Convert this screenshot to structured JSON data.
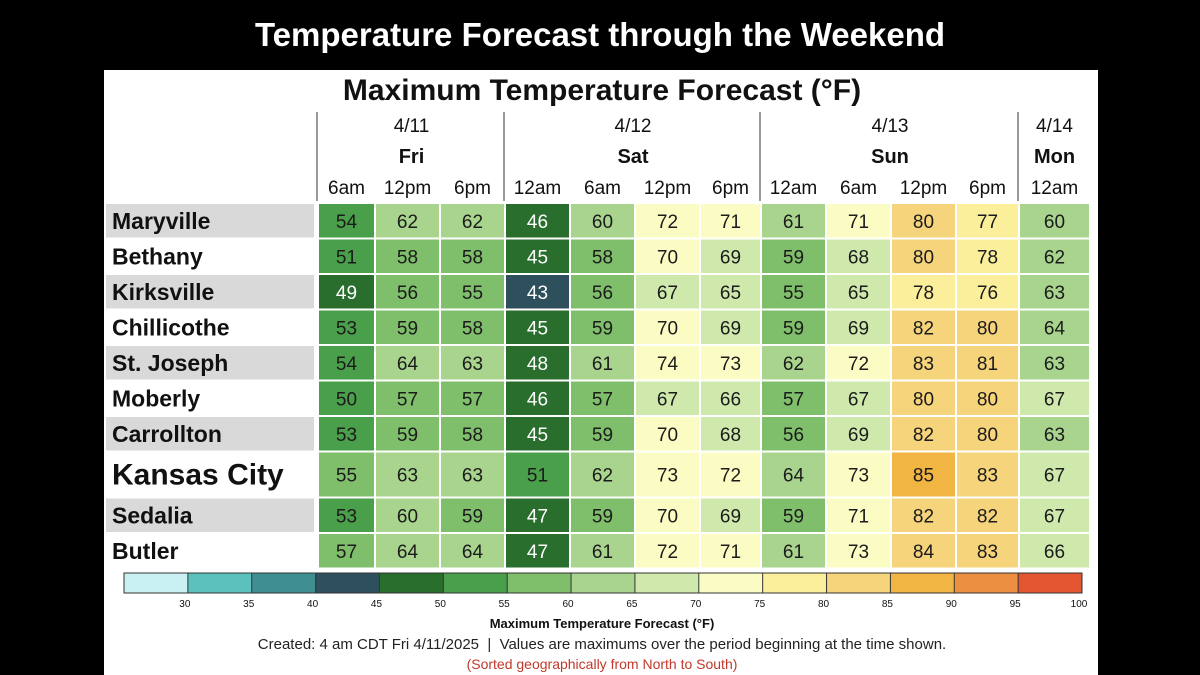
{
  "banner": {
    "title": "Temperature Forecast through the Weekend"
  },
  "chart_data": {
    "type": "heatmap",
    "title": "Maximum Temperature Forecast (°F)",
    "days": [
      {
        "date": "4/11",
        "day": "Fri",
        "times": [
          "6am",
          "12pm",
          "6pm"
        ]
      },
      {
        "date": "4/12",
        "day": "Sat",
        "times": [
          "12am",
          "6am",
          "12pm",
          "6pm"
        ]
      },
      {
        "date": "4/13",
        "day": "Sun",
        "times": [
          "12am",
          "6am",
          "12pm",
          "6pm"
        ]
      },
      {
        "date": "4/14",
        "day": "Mon",
        "times": [
          "12am"
        ]
      }
    ],
    "rows": [
      {
        "city": "Maryville",
        "values": [
          54,
          62,
          62,
          46,
          60,
          72,
          71,
          61,
          71,
          80,
          77,
          60
        ]
      },
      {
        "city": "Bethany",
        "values": [
          51,
          58,
          58,
          45,
          58,
          70,
          69,
          59,
          68,
          80,
          78,
          62
        ]
      },
      {
        "city": "Kirksville",
        "values": [
          49,
          56,
          55,
          43,
          56,
          67,
          65,
          55,
          65,
          78,
          76,
          63
        ]
      },
      {
        "city": "Chillicothe",
        "values": [
          53,
          59,
          58,
          45,
          59,
          70,
          69,
          59,
          69,
          82,
          80,
          64
        ]
      },
      {
        "city": "St. Joseph",
        "values": [
          54,
          64,
          63,
          48,
          61,
          74,
          73,
          62,
          72,
          83,
          81,
          63
        ]
      },
      {
        "city": "Moberly",
        "values": [
          50,
          57,
          57,
          46,
          57,
          67,
          66,
          57,
          67,
          80,
          80,
          67
        ]
      },
      {
        "city": "Carrollton",
        "values": [
          53,
          59,
          58,
          45,
          59,
          70,
          68,
          56,
          69,
          82,
          80,
          63
        ]
      },
      {
        "city": "Kansas City",
        "values": [
          55,
          63,
          63,
          51,
          62,
          73,
          72,
          64,
          73,
          85,
          83,
          67
        ]
      },
      {
        "city": "Sedalia",
        "values": [
          53,
          60,
          59,
          47,
          59,
          70,
          69,
          59,
          71,
          82,
          82,
          67
        ]
      },
      {
        "city": "Butler",
        "values": [
          57,
          64,
          64,
          47,
          61,
          72,
          71,
          61,
          73,
          84,
          83,
          66
        ]
      }
    ],
    "highlight_city": "Kansas City",
    "legend": {
      "label": "Maximum Temperature Forecast (°F)",
      "ticks": [
        30,
        35,
        40,
        45,
        50,
        55,
        60,
        65,
        70,
        75,
        80,
        85,
        90,
        95,
        100
      ],
      "colors": [
        "#c9f0f2",
        "#5cc0bc",
        "#3e8e92",
        "#2e4f5c",
        "#2a6e2e",
        "#4a9f4a",
        "#7fbe6a",
        "#a8d48e",
        "#cfe9ad",
        "#fbfcc4",
        "#fbef9c",
        "#f6d47b",
        "#f0b542",
        "#ec8f40",
        "#e25530"
      ]
    },
    "note": "Created: 4 am CDT Fri 4/11/2025  |  Values are maximums over the period beginning at the time shown.",
    "sort_note": "(Sorted geographically from North to South)"
  }
}
